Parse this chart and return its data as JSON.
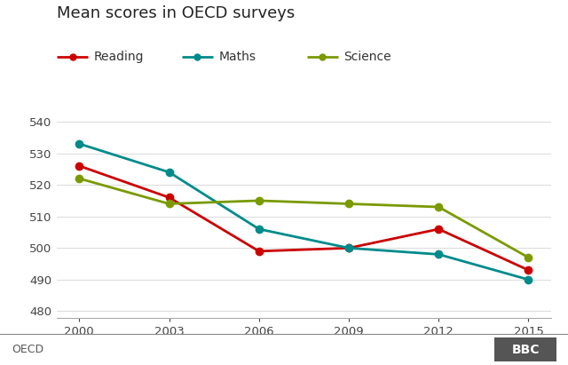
{
  "title": "Mean scores in OECD surveys",
  "years": [
    2000,
    2003,
    2006,
    2009,
    2012,
    2015
  ],
  "series": [
    {
      "name": "Reading",
      "values": [
        526,
        516,
        499,
        500,
        506,
        493
      ],
      "color": "#cc0000",
      "linewidth": 2.0,
      "markersize": 6
    },
    {
      "name": "Maths",
      "values": [
        533,
        524,
        506,
        500,
        498,
        490
      ],
      "color": "#008B8B",
      "linewidth": 2.0,
      "markersize": 6
    },
    {
      "name": "Science",
      "values": [
        522,
        514,
        515,
        514,
        513,
        497
      ],
      "color": "#7a9a00",
      "linewidth": 2.0,
      "markersize": 6
    }
  ],
  "ylim": [
    478,
    545
  ],
  "yticks": [
    480,
    490,
    500,
    510,
    520,
    530,
    540
  ],
  "xticks": [
    2000,
    2003,
    2006,
    2009,
    2012,
    2015
  ],
  "xlabel_bottom": "OECD",
  "bbc_label": "BBC",
  "background_color": "#ffffff",
  "grid_color": "#dddddd",
  "title_fontsize": 13,
  "legend_fontsize": 10,
  "tick_fontsize": 9.5,
  "footer_fontsize": 9
}
